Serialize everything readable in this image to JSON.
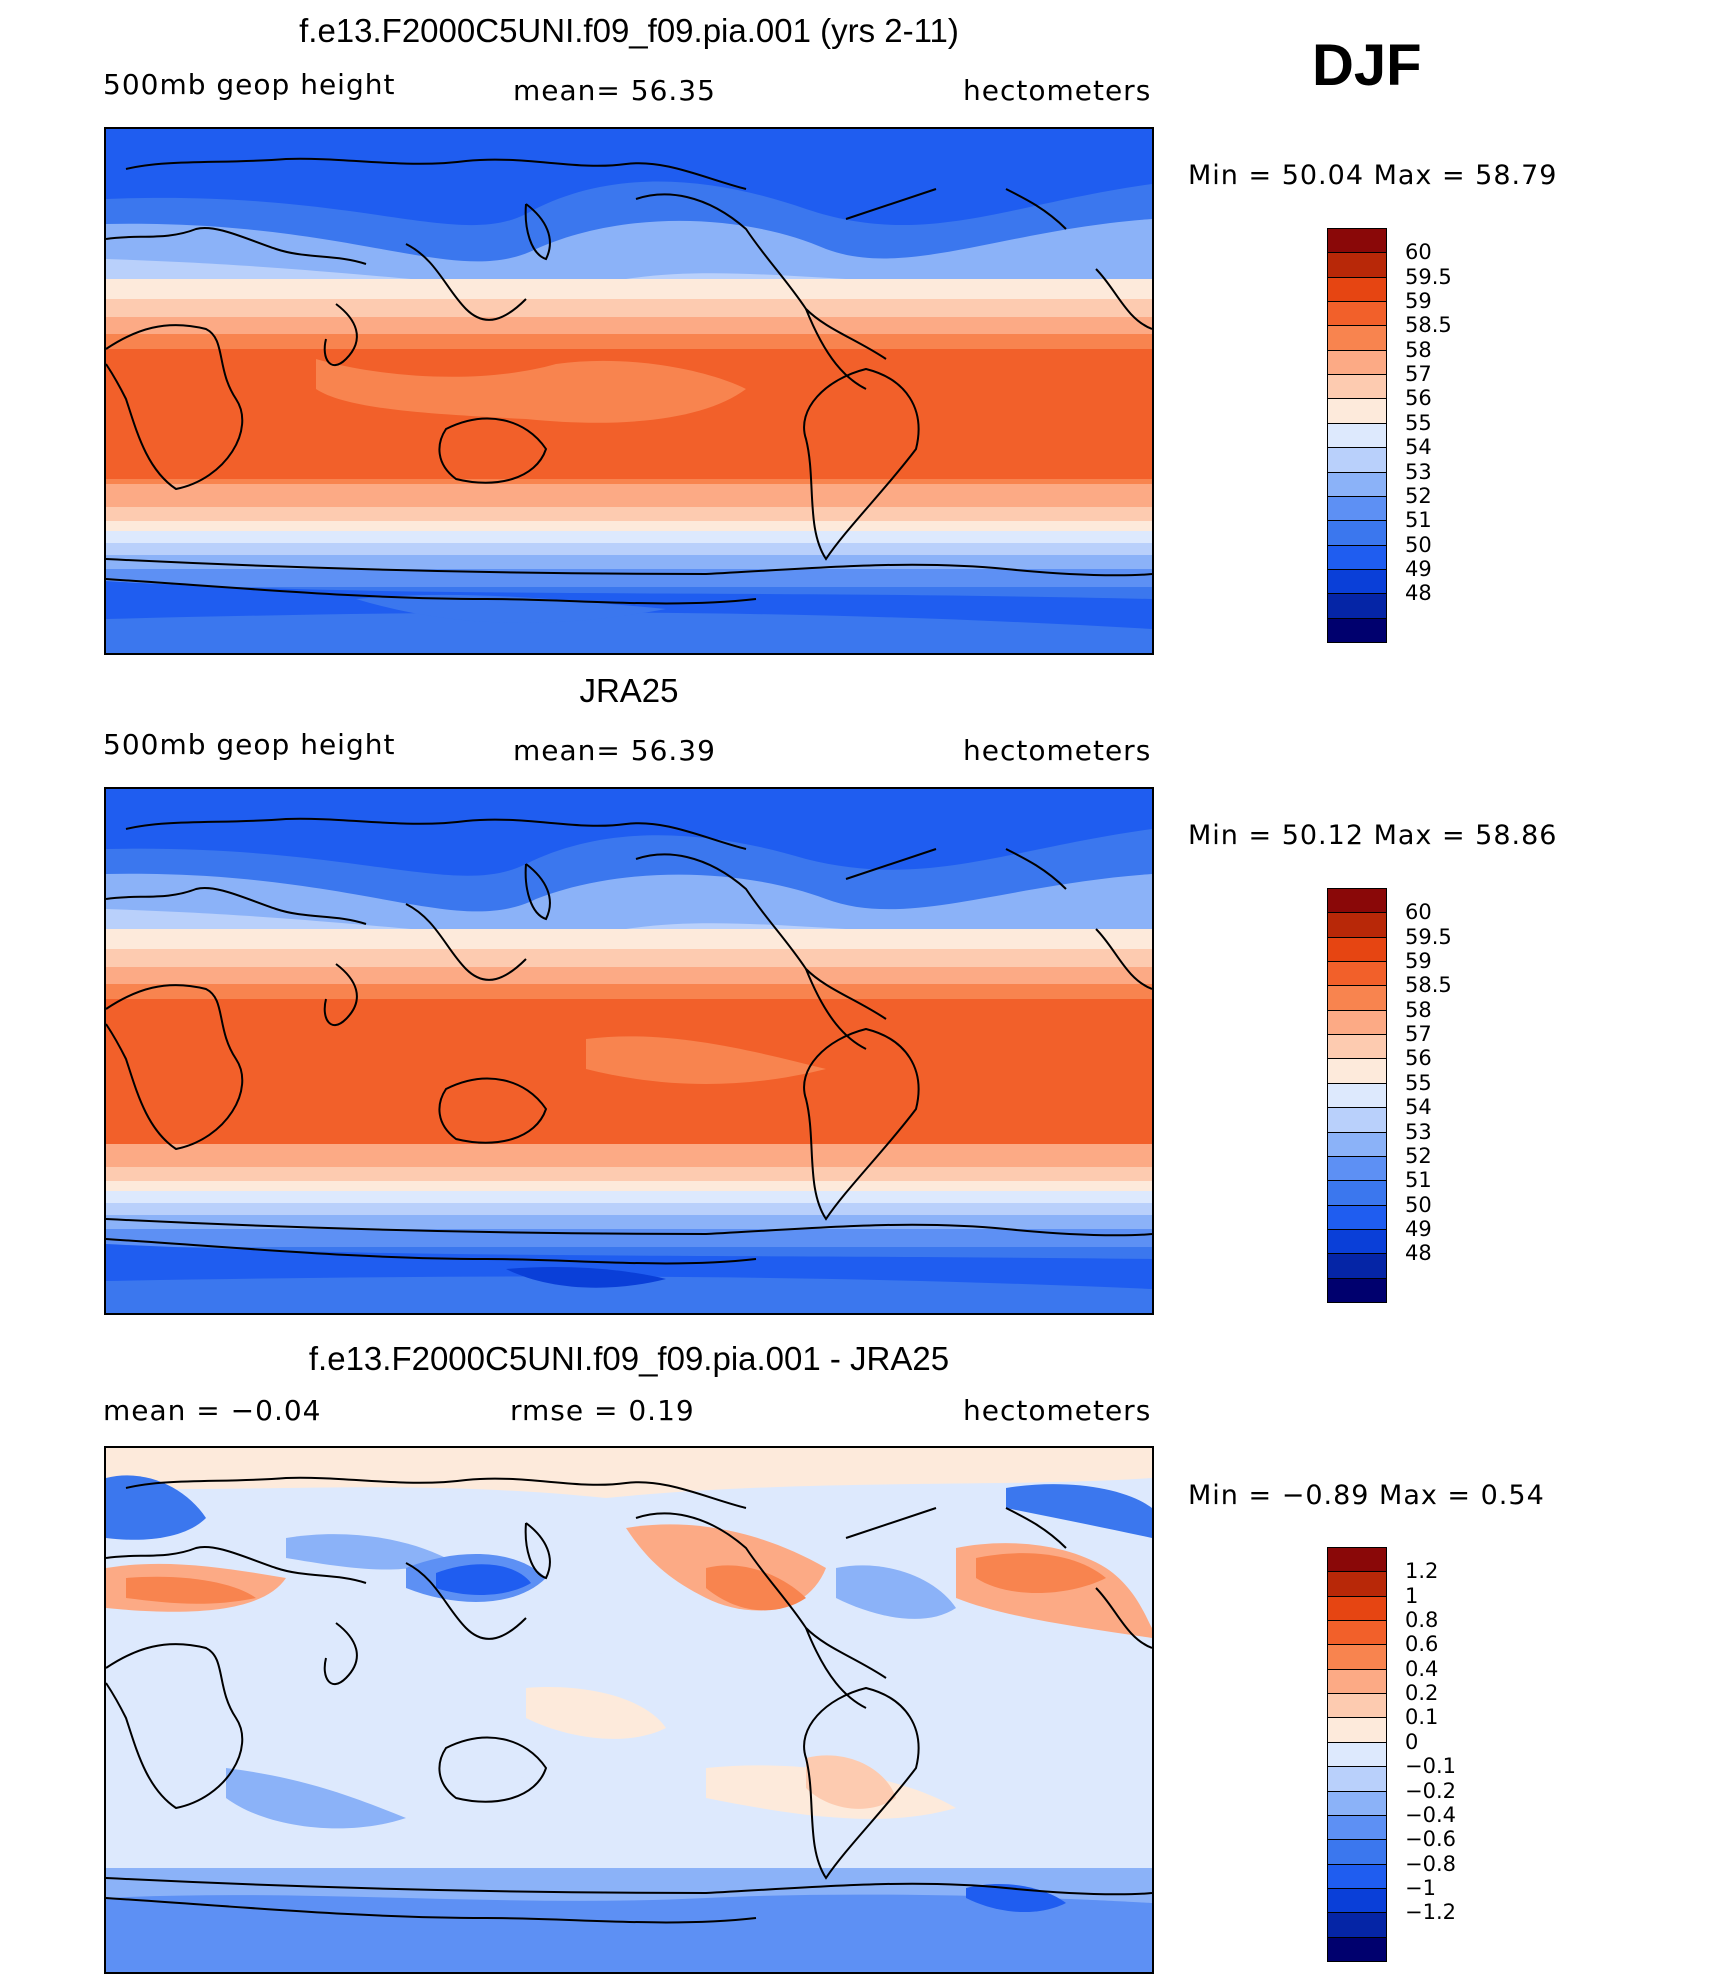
{
  "season": "DJF",
  "panels": [
    {
      "title": "f.e13.F2000C5UNI.f09_f09.pia.001 (yrs 2-11)",
      "left_label": "500mb  geop  height",
      "center_label": "mean=   56.35",
      "right_label": "hectometers",
      "min_max": "Min  =    50.04  Max  =    58.79",
      "colorbar_labels": [
        "60",
        "59.5",
        "59",
        "58.5",
        "58",
        "57",
        "56",
        "55",
        "54",
        "53",
        "52",
        "51",
        "50",
        "49",
        "48"
      ]
    },
    {
      "title": "JRA25",
      "left_label": "500mb  geop  height",
      "center_label": "mean=   56.39",
      "right_label": "hectometers",
      "min_max": "Min  =    50.12  Max  =    58.86",
      "colorbar_labels": [
        "60",
        "59.5",
        "59",
        "58.5",
        "58",
        "57",
        "56",
        "55",
        "54",
        "53",
        "52",
        "51",
        "50",
        "49",
        "48"
      ]
    },
    {
      "title": "f.e13.F2000C5UNI.f09_f09.pia.001 - JRA25",
      "left_label": "mean  =    −0.04",
      "center_label": "rmse  =     0.19",
      "right_label": "hectometers",
      "min_max": "Min  =    −0.89  Max  =      0.54",
      "colorbar_labels": [
        "1.2",
        "1",
        "0.8",
        "0.6",
        "0.4",
        "0.2",
        "0.1",
        "0",
        "−0.1",
        "−0.2",
        "−0.4",
        "−0.6",
        "−0.8",
        "−1",
        "−1.2"
      ]
    }
  ],
  "colors": {
    "abs_scale": [
      "#00006e",
      "#0525a6",
      "#0a3fd8",
      "#1f5df0",
      "#3b77ee",
      "#5d90f4",
      "#8bb2f8",
      "#b9d0fb",
      "#dde9fd",
      "#fdeadb",
      "#fdcbb0",
      "#fcaa85",
      "#f8844f",
      "#f2602a",
      "#e64512",
      "#b82808",
      "#8a0808"
    ],
    "diff_scale": [
      "#00006e",
      "#0525a6",
      "#0a3fd8",
      "#1f5df0",
      "#3b77ee",
      "#5d90f4",
      "#8bb2f8",
      "#b9d0fb",
      "#dde9fd",
      "#fdeadb",
      "#fdcbb0",
      "#fcaa85",
      "#f8844f",
      "#f2602a",
      "#e64512",
      "#b82808",
      "#8a0808"
    ],
    "coastline": "#000000"
  }
}
